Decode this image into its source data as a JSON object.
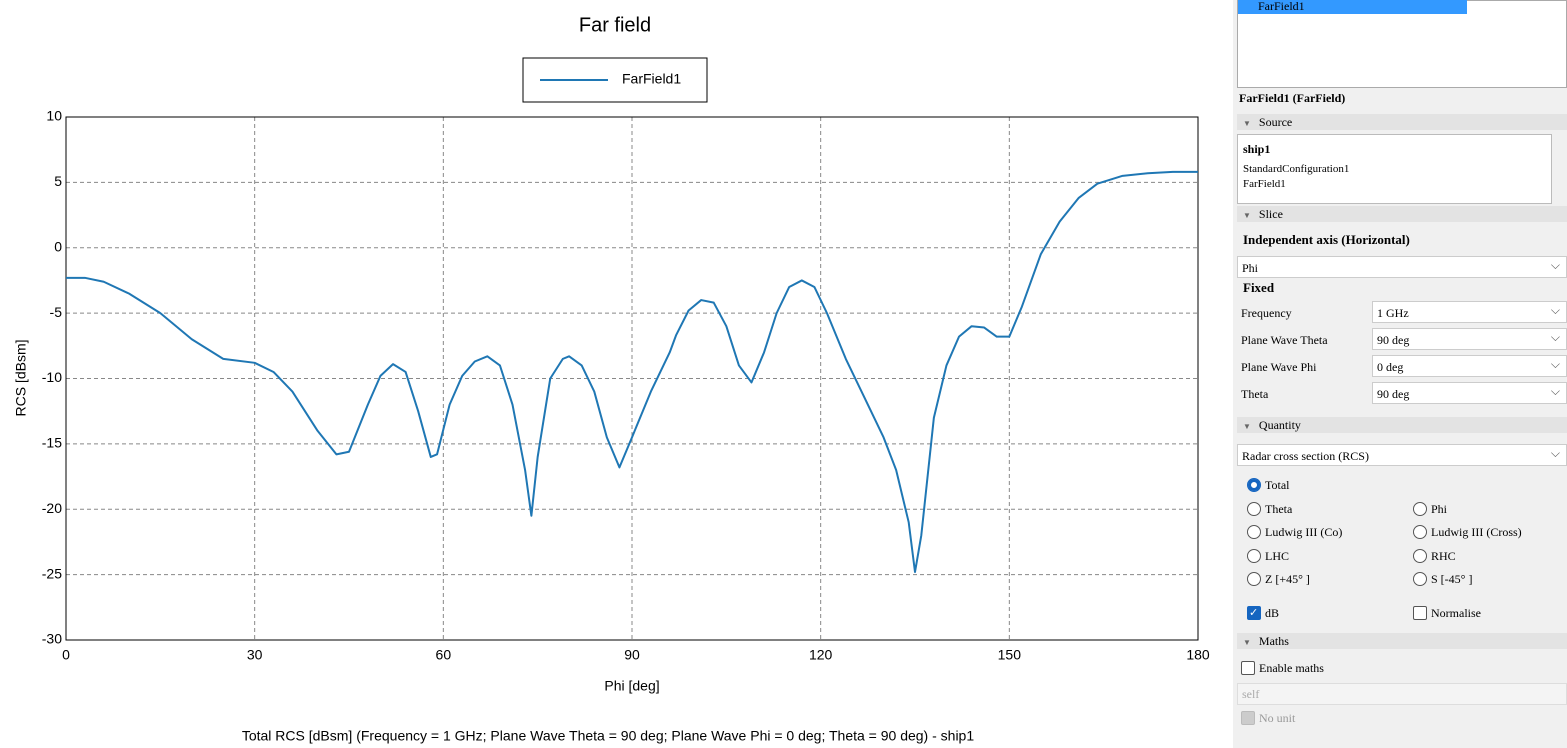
{
  "chart_data": {
    "type": "line",
    "title": "Far field",
    "xlabel": "Phi [deg]",
    "ylabel": "RCS [dBsm]",
    "caption": "Total RCS [dBsm] (Frequency = 1 GHz; Plane Wave Theta = 90 deg; Plane Wave Phi = 0 deg; Theta = 90 deg) - ship1",
    "legend": "top",
    "x": [
      0,
      3,
      6,
      10,
      15,
      20,
      25,
      30,
      33,
      36,
      40,
      43,
      45,
      48,
      50,
      52,
      54,
      56,
      58,
      59,
      61,
      63,
      65,
      67,
      69,
      71,
      73,
      74,
      75,
      77,
      79,
      80,
      82,
      84,
      86,
      88,
      90,
      93,
      96,
      97,
      99,
      101,
      103,
      105,
      107,
      109,
      111,
      113,
      115,
      117,
      119,
      121,
      124,
      127,
      130,
      132,
      134,
      135,
      136,
      138,
      140,
      142,
      144,
      146,
      148,
      150,
      152,
      155,
      158,
      161,
      164,
      168,
      172,
      176,
      180
    ],
    "series": [
      {
        "name": "FarField1",
        "color": "#1f77b4",
        "values": [
          -2.3,
          -2.3,
          -2.6,
          -3.5,
          -5,
          -7,
          -8.5,
          -8.8,
          -9.5,
          -11,
          -14,
          -15.8,
          -15.6,
          -12,
          -9.8,
          -8.9,
          -9.5,
          -12.5,
          -16,
          -15.8,
          -12,
          -9.8,
          -8.7,
          -8.3,
          -9,
          -12,
          -17,
          -20.5,
          -16,
          -10,
          -8.5,
          -8.3,
          -9,
          -11,
          -14.5,
          -16.8,
          -14.5,
          -11,
          -8,
          -6.7,
          -4.8,
          -4,
          -4.2,
          -6,
          -9,
          -10.3,
          -8,
          -5,
          -3,
          -2.5,
          -3,
          -5,
          -8.5,
          -11.5,
          -14.5,
          -17,
          -21,
          -24.8,
          -22,
          -13,
          -9,
          -6.8,
          -6,
          -6.1,
          -6.8,
          -6.8,
          -4.5,
          -0.5,
          2,
          3.8,
          4.9,
          5.5,
          5.7,
          5.8,
          5.8
        ]
      }
    ],
    "xlim": [
      0,
      180
    ],
    "ylim": [
      -30,
      10
    ],
    "xticks": [
      0,
      30,
      60,
      90,
      120,
      150,
      180
    ],
    "yticks": [
      -30,
      -25,
      -20,
      -15,
      -10,
      -5,
      0,
      5,
      10
    ],
    "grid": true
  },
  "panel": {
    "tree_item": "FarField1",
    "header": "FarField1 (FarField)",
    "source": {
      "title": "Source",
      "items": [
        "ship1",
        "StandardConfiguration1",
        "FarField1"
      ]
    },
    "slice": {
      "title": "Slice",
      "axis_label": "Independent axis (Horizontal)",
      "axis_value": "Phi",
      "fixed_label": "Fixed",
      "rows": [
        [
          "Frequency",
          "1 GHz"
        ],
        [
          "Plane Wave Theta",
          "90 deg"
        ],
        [
          "Plane Wave Phi",
          "0 deg"
        ],
        [
          "Theta",
          "90 deg"
        ]
      ]
    },
    "quantity": {
      "title": "Quantity",
      "value": "Radar cross section (RCS)",
      "radios": [
        "Total",
        "Theta",
        "Phi",
        "Ludwig III (Co)",
        "Ludwig III (Cross)",
        "LHC",
        "RHC",
        "Z [+45° ]",
        "S [-45° ]"
      ],
      "db": "dB",
      "normalise": "Normalise"
    },
    "maths": {
      "title": "Maths",
      "enable": "Enable maths",
      "expression": "self",
      "no_unit": "No unit"
    }
  }
}
